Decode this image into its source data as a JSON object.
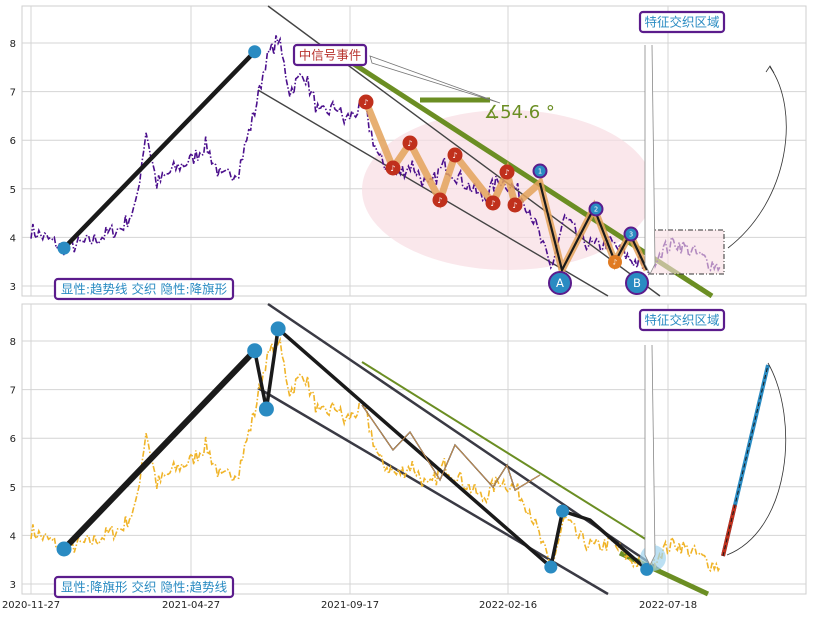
{
  "chart_data": [
    {
      "type": "line",
      "panel": "top",
      "x_tick_labels": [
        "2020-11-27",
        "2021-04-27",
        "2021-09-17",
        "2022-02-16",
        "2022-07-18"
      ],
      "y_ticks": [
        3,
        4,
        5,
        6,
        7,
        8
      ],
      "ylim": [
        2.8,
        8.7
      ],
      "grid": true,
      "series_color": "#4b0f8c",
      "annotations": {
        "signal_label": "中信号事件",
        "angle_label": "∡54.6 °",
        "region_label": "特征交织区域",
        "point_a": "A",
        "point_b": "B",
        "numbered_markers": [
          "1",
          "2",
          "3"
        ],
        "footer_label": "显性:趋势线 交织 隐性:降旗形"
      },
      "key_points": [
        {
          "date": "2020-12-28",
          "value": 3.78
        },
        {
          "date": "2021-06-25",
          "value": 7.82
        },
        {
          "date": "2022-03-30",
          "value": 3.3
        },
        {
          "date": "2022-06-28",
          "value": 3.1
        }
      ]
    },
    {
      "type": "line",
      "panel": "bottom",
      "x_tick_labels": [
        "2020-11-27",
        "2021-04-27",
        "2021-09-17",
        "2022-02-16",
        "2022-07-18"
      ],
      "y_ticks": [
        3,
        4,
        5,
        6,
        7,
        8
      ],
      "ylim": [
        2.8,
        8.7
      ],
      "grid": true,
      "series_color": "#f0b429",
      "annotations": {
        "region_label": "特征交织区域",
        "footer_label": "显性:降旗形 交织 隐性:趋势线"
      },
      "key_points": [
        {
          "date": "2020-12-28",
          "value": 3.72
        },
        {
          "date": "2021-06-25",
          "value": 7.8
        },
        {
          "date": "2021-07-06",
          "value": 6.6
        },
        {
          "date": "2021-07-17",
          "value": 8.25
        },
        {
          "date": "2022-03-30",
          "value": 3.35
        },
        {
          "date": "2022-04-10",
          "value": 4.5
        },
        {
          "date": "2022-06-28",
          "value": 3.3
        }
      ]
    }
  ],
  "colors": {
    "trend_green": "#6b8e23",
    "price_purple": "#4b0f8c",
    "price_gold": "#f0b429",
    "marker_blue": "#2a8bc2",
    "marker_red": "#c0301c",
    "marker_orange": "#e07b22",
    "zone_pink": "#f8dde3"
  }
}
